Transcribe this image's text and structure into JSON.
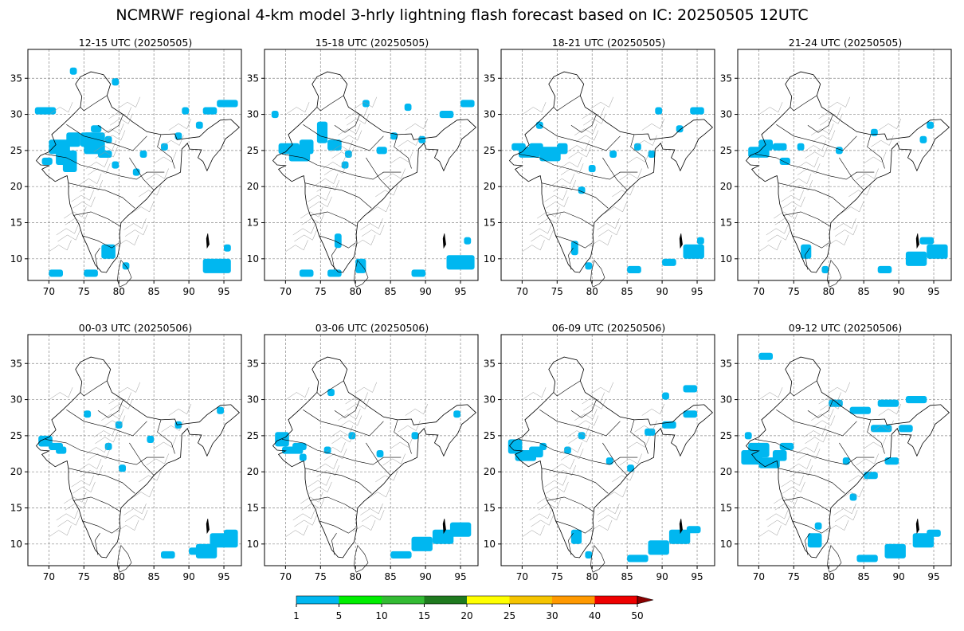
{
  "title": "NCMRWF regional 4-km model 3-hrly lightning flash forecast based on IC: 20250505 12UTC",
  "axes": {
    "lon_range": [
      67,
      97.5
    ],
    "lat_range": [
      7,
      39
    ],
    "x_ticks": [
      70,
      75,
      80,
      85,
      90,
      95
    ],
    "y_ticks": [
      10,
      15,
      20,
      25,
      30,
      35
    ],
    "grid": true
  },
  "panels": [
    {
      "label": "12-15 UTC (20250505)",
      "cells": [
        [
          68,
          30,
          3,
          1
        ],
        [
          70,
          24.5,
          3,
          2
        ],
        [
          71,
          23,
          3,
          2
        ],
        [
          72,
          22,
          2,
          2
        ],
        [
          72.5,
          25.5,
          2,
          2
        ],
        [
          74.5,
          25.5,
          2,
          2
        ],
        [
          75,
          24.5,
          3,
          3
        ],
        [
          77,
          24,
          2,
          1
        ],
        [
          76,
          27.5,
          1.5,
          1
        ],
        [
          78,
          26,
          1,
          1
        ],
        [
          79,
          22.5,
          1,
          1
        ],
        [
          82,
          21.5,
          1,
          1
        ],
        [
          83,
          24,
          1,
          1
        ],
        [
          86,
          25,
          1,
          1
        ],
        [
          88,
          26.5,
          1,
          1
        ],
        [
          91,
          28,
          1,
          1
        ],
        [
          89,
          30,
          1,
          1
        ],
        [
          94,
          31,
          3,
          1
        ],
        [
          92,
          30,
          2,
          1
        ],
        [
          73,
          35.5,
          1,
          1
        ],
        [
          79,
          34,
          1,
          1
        ],
        [
          77.5,
          10,
          2,
          2
        ],
        [
          80.5,
          8.5,
          1,
          1
        ],
        [
          70,
          7.5,
          2,
          1
        ],
        [
          75,
          7.5,
          2,
          1
        ],
        [
          92,
          8,
          4,
          2
        ],
        [
          95,
          11,
          1,
          1
        ],
        [
          69,
          23,
          1.5,
          1
        ]
      ]
    },
    {
      "label": "15-18 UTC (20250505)",
      "cells": [
        [
          69,
          24.5,
          3,
          1.5
        ],
        [
          70.5,
          23.5,
          3,
          1.5
        ],
        [
          72,
          24.5,
          2,
          2
        ],
        [
          74.5,
          26,
          1.5,
          3
        ],
        [
          76,
          25,
          2,
          1.5
        ],
        [
          78,
          22.5,
          1,
          1
        ],
        [
          78.5,
          24,
          1,
          1
        ],
        [
          83,
          24.5,
          1.5,
          1
        ],
        [
          85,
          26.5,
          1,
          1
        ],
        [
          89,
          26,
          1,
          1
        ],
        [
          92,
          29.5,
          2,
          1
        ],
        [
          95,
          31,
          2,
          1
        ],
        [
          87,
          30.5,
          1,
          1
        ],
        [
          81,
          31,
          1,
          1
        ],
        [
          77,
          11.5,
          1,
          2
        ],
        [
          80,
          8,
          1.5,
          2
        ],
        [
          72,
          7.5,
          2,
          1
        ],
        [
          76,
          7.5,
          2,
          1
        ],
        [
          88,
          7.5,
          2,
          1
        ],
        [
          93,
          8.5,
          4,
          2
        ],
        [
          95.5,
          12,
          1,
          1
        ],
        [
          68,
          29.5,
          1,
          1
        ]
      ]
    },
    {
      "label": "18-21 UTC (20250505)",
      "cells": [
        [
          68.5,
          25,
          2,
          1
        ],
        [
          69.5,
          24,
          3,
          1.5
        ],
        [
          71,
          24.5,
          2,
          1.5
        ],
        [
          72.5,
          23.5,
          3,
          2
        ],
        [
          75,
          24.5,
          1.5,
          1.5
        ],
        [
          72,
          28,
          1,
          1
        ],
        [
          78,
          19,
          1,
          1
        ],
        [
          79.5,
          22,
          1,
          1
        ],
        [
          82.5,
          24,
          1,
          1
        ],
        [
          86,
          25,
          1,
          1
        ],
        [
          88,
          24,
          1,
          1
        ],
        [
          92,
          27.5,
          1,
          1
        ],
        [
          94,
          30,
          2,
          1
        ],
        [
          89,
          30,
          1,
          1
        ],
        [
          77,
          10.5,
          1,
          2
        ],
        [
          79,
          8.5,
          1,
          1
        ],
        [
          85,
          8,
          2,
          1
        ],
        [
          90,
          9,
          2,
          1
        ],
        [
          93,
          10,
          3,
          2
        ],
        [
          95,
          12,
          1,
          1
        ]
      ]
    },
    {
      "label": "21-24 UTC (20250505)",
      "cells": [
        [
          68.5,
          24,
          3,
          1.5
        ],
        [
          70,
          25,
          2,
          1.5
        ],
        [
          72,
          25,
          2,
          1
        ],
        [
          73,
          23,
          1.5,
          1
        ],
        [
          75.5,
          25,
          1,
          1
        ],
        [
          81,
          24.5,
          1,
          1
        ],
        [
          86,
          27,
          1,
          1
        ],
        [
          93,
          26,
          1,
          1
        ],
        [
          94,
          28,
          1,
          1
        ],
        [
          76,
          10,
          1.5,
          2
        ],
        [
          79,
          8,
          1,
          1
        ],
        [
          87,
          8,
          2,
          1
        ],
        [
          91,
          9,
          3,
          2
        ],
        [
          94,
          10,
          3,
          2
        ],
        [
          93,
          12,
          2,
          1
        ]
      ]
    },
    {
      "label": "00-03 UTC (20250506)",
      "cells": [
        [
          68.5,
          23.5,
          2,
          1.5
        ],
        [
          70,
          23,
          2,
          1
        ],
        [
          71,
          22.5,
          1.5,
          1
        ],
        [
          78,
          23,
          1,
          1
        ],
        [
          79.5,
          26,
          1,
          1
        ],
        [
          84,
          24,
          1,
          1
        ],
        [
          88,
          26,
          1,
          1
        ],
        [
          94,
          28,
          1,
          1
        ],
        [
          75,
          27.5,
          1,
          1
        ],
        [
          80,
          20,
          1,
          1
        ],
        [
          91,
          8,
          3,
          2
        ],
        [
          93,
          9.5,
          4,
          2
        ],
        [
          90,
          8.5,
          2,
          1
        ],
        [
          86,
          8,
          2,
          1
        ],
        [
          95,
          11,
          2,
          1
        ]
      ]
    },
    {
      "label": "03-06 UTC (20250506)",
      "cells": [
        [
          68.5,
          23.5,
          2,
          2
        ],
        [
          69.5,
          22.5,
          3,
          1
        ],
        [
          71,
          23,
          2,
          1
        ],
        [
          72,
          21.5,
          1,
          1
        ],
        [
          75.5,
          22.5,
          1,
          1
        ],
        [
          79,
          24.5,
          1,
          1
        ],
        [
          83,
          22,
          1,
          1
        ],
        [
          88,
          24.5,
          1,
          1
        ],
        [
          94,
          27.5,
          1,
          1
        ],
        [
          76,
          30.5,
          1,
          1
        ],
        [
          85,
          8,
          3,
          1
        ],
        [
          88,
          9,
          3,
          2
        ],
        [
          91,
          10,
          3,
          2
        ],
        [
          93.5,
          11,
          3,
          2
        ]
      ]
    },
    {
      "label": "06-09 UTC (20250506)",
      "cells": [
        [
          68,
          22.5,
          2,
          2
        ],
        [
          69,
          21.5,
          3,
          1.5
        ],
        [
          71,
          22,
          2,
          1.5
        ],
        [
          72.5,
          23,
          1,
          1
        ],
        [
          76,
          22.5,
          1,
          1
        ],
        [
          78,
          24.5,
          1,
          1
        ],
        [
          82,
          21,
          1,
          1
        ],
        [
          85,
          20,
          1,
          1
        ],
        [
          87.5,
          25,
          1.5,
          1
        ],
        [
          90,
          26,
          2,
          1
        ],
        [
          93,
          27.5,
          2,
          1
        ],
        [
          93,
          31,
          2,
          1
        ],
        [
          90,
          30,
          1,
          1
        ],
        [
          77,
          10,
          1.5,
          2
        ],
        [
          79,
          8,
          1,
          1
        ],
        [
          85,
          7.5,
          3,
          1
        ],
        [
          88,
          8.5,
          3,
          2
        ],
        [
          91,
          10,
          3,
          2
        ],
        [
          93.5,
          11.5,
          2,
          1
        ]
      ]
    },
    {
      "label": "09-12 UTC (20250506)",
      "cells": [
        [
          67.5,
          21,
          3,
          2
        ],
        [
          68.5,
          22,
          3,
          2
        ],
        [
          70,
          20.5,
          3,
          1.5
        ],
        [
          72,
          21.5,
          2,
          1.5
        ],
        [
          73,
          23,
          2,
          1
        ],
        [
          68,
          24.5,
          1,
          1
        ],
        [
          70,
          35.5,
          2,
          1
        ],
        [
          80,
          29,
          2,
          1
        ],
        [
          83,
          28,
          3,
          1
        ],
        [
          87,
          29,
          3,
          1
        ],
        [
          91,
          29.5,
          3,
          1
        ],
        [
          86,
          25.5,
          3,
          1
        ],
        [
          90,
          25.5,
          2,
          1
        ],
        [
          82,
          21,
          1,
          1
        ],
        [
          85,
          19,
          2,
          1
        ],
        [
          88,
          21,
          2,
          1
        ],
        [
          83,
          16,
          1,
          1
        ],
        [
          77,
          9.5,
          2,
          2
        ],
        [
          78,
          12,
          1,
          1
        ],
        [
          84,
          7.5,
          3,
          1
        ],
        [
          88,
          8,
          3,
          2
        ],
        [
          92,
          9.5,
          3,
          2
        ],
        [
          94,
          11,
          2,
          1
        ]
      ]
    }
  ],
  "colorbar": {
    "ticks": [
      "1",
      "5",
      "10",
      "15",
      "20",
      "25",
      "30",
      "40",
      "50"
    ],
    "colors": [
      "#00b7f0",
      "#00ee00",
      "#33bb33",
      "#1f7a1f",
      "#ffff00",
      "#f5c400",
      "#ff9900",
      "#ee0000"
    ],
    "extend_color": "#8a0000"
  },
  "chart_data": {
    "type": "heatmap",
    "title": "NCMRWF regional 4-km model 3-hrly lightning flash forecast based on IC: 20250505 12UTC",
    "xlabel": "",
    "ylabel": "",
    "x_ticks": [
      70,
      75,
      80,
      85,
      90,
      95
    ],
    "y_ticks": [
      10,
      15,
      20,
      25,
      30,
      35
    ],
    "xlim": [
      67,
      97.5
    ],
    "ylim": [
      7,
      39
    ],
    "color_levels": [
      1,
      5,
      10,
      15,
      20,
      25,
      30,
      40,
      50
    ],
    "panel_count": 8,
    "grid": true,
    "legend": "bottom-center colorbar"
  }
}
